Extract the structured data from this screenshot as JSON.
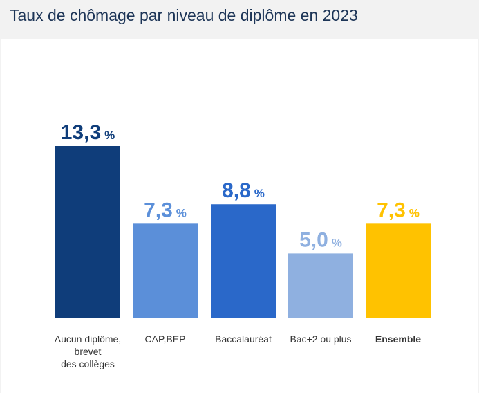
{
  "header": {
    "title": "Taux de chômage par niveau de diplôme en 2023"
  },
  "chart_data": {
    "type": "bar",
    "title": "Taux de chômage par niveau de diplôme en 2023",
    "xlabel": "",
    "ylabel": "",
    "categories": [
      [
        "Aucun diplôme,",
        "brevet",
        "des collèges"
      ],
      [
        "CAP,BEP"
      ],
      [
        "Baccalauréat"
      ],
      [
        "Bac+2 ou plus"
      ],
      [
        "Ensemble"
      ]
    ],
    "values": [
      13.3,
      7.3,
      8.8,
      5.0,
      7.3
    ],
    "value_labels": [
      "13,3",
      "7,3",
      "8,8",
      "5,0",
      "7,3"
    ],
    "unit": "%",
    "colors": [
      "#0f3d7a",
      "#5b8fd9",
      "#2a68c9",
      "#8fb0e0",
      "#ffc200"
    ],
    "bold_category_index": 4,
    "ylim": [
      0,
      13.3
    ],
    "grid": false,
    "legend": "none"
  }
}
